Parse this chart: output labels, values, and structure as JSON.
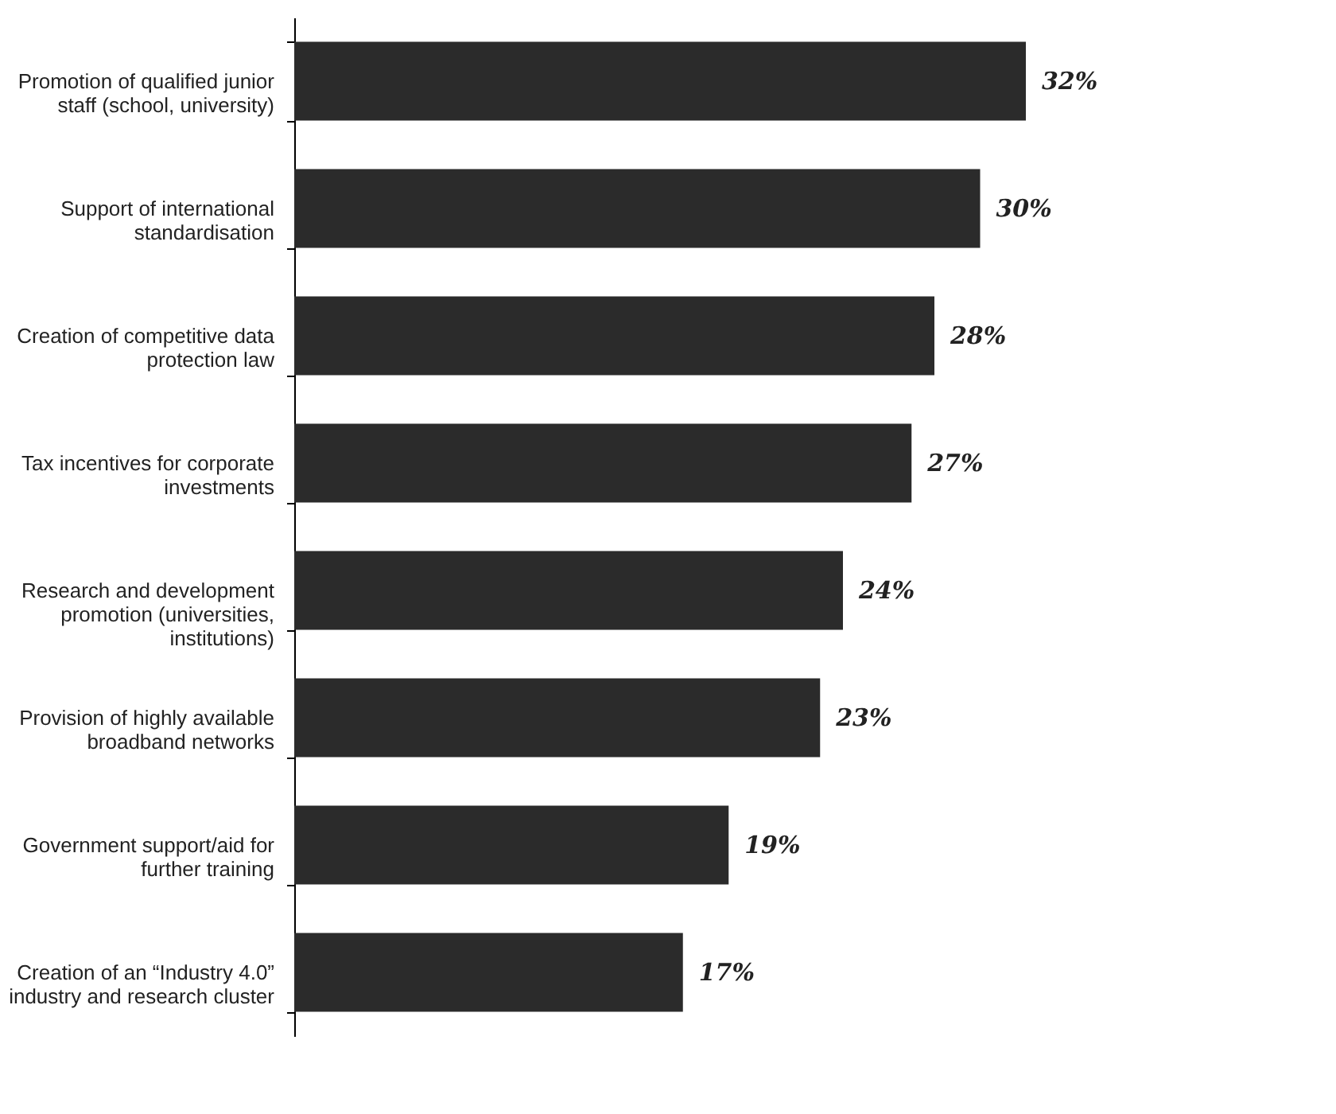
{
  "chart_data": {
    "type": "bar",
    "orientation": "horizontal",
    "categories": [
      "Promotion of qualified junior staff (school, university)",
      "Support of international standardisation",
      "Creation of competitive data protection law",
      "Tax incentives for corporate investments",
      "Research and development promotion (universities, institutions)",
      "Provision of highly available broadband networks",
      "Government support/aid for further training",
      "Creation of an “Industry 4.0” industry and research cluster"
    ],
    "values": [
      32,
      30,
      28,
      27,
      24,
      23,
      19,
      17
    ],
    "value_labels": [
      "32%",
      "30%",
      "28%",
      "27%",
      "24%",
      "23%",
      "19%",
      "17%"
    ],
    "color": "#2b2b2b",
    "tick_labels": "y"
  }
}
